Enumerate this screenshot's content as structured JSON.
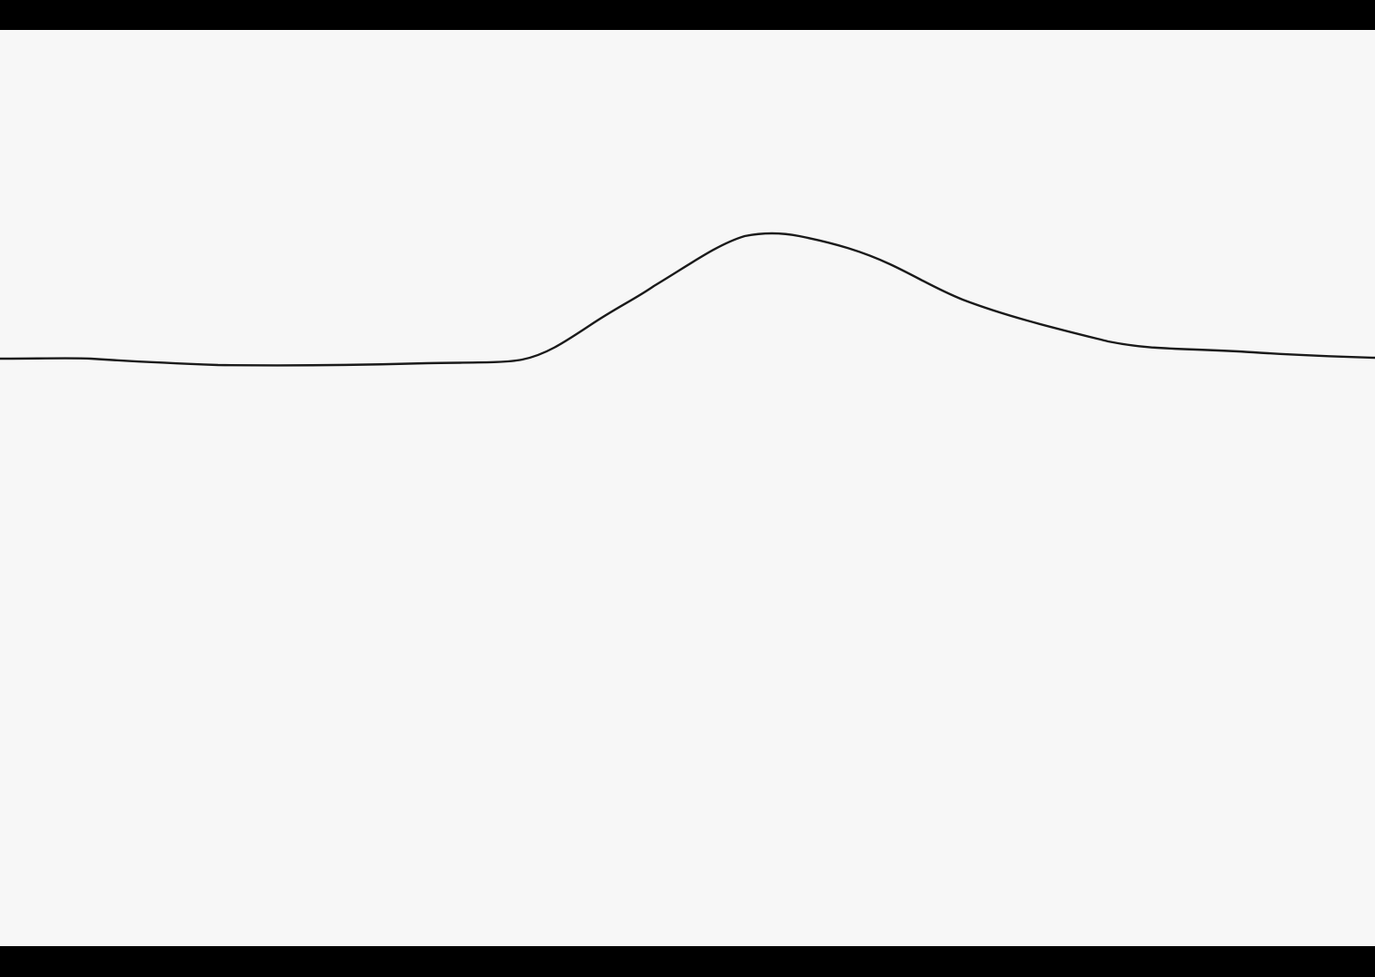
{
  "scene": {
    "subject": "hand-drawn-curve",
    "colors": {
      "letterbox": "#000000",
      "paper": "#f7f7f7",
      "stroke": "#1a1a1a"
    }
  }
}
